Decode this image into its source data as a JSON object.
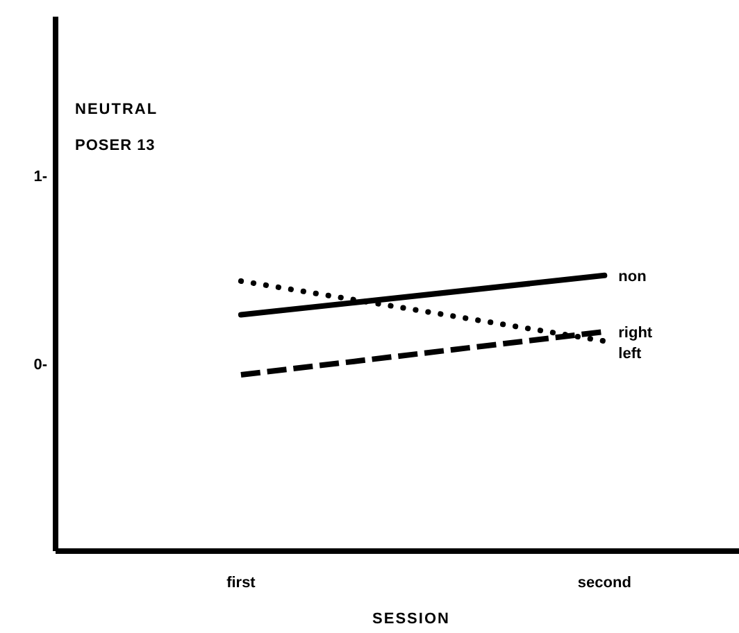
{
  "chart_data": {
    "type": "line",
    "title": "NEUTRAL",
    "subtitle": "POSER 13",
    "xlabel": "SESSION",
    "categories": [
      "first",
      "second"
    ],
    "series": [
      {
        "name": "non",
        "color": "#000000",
        "line_style": "solid",
        "values": [
          0.26,
          0.47
        ]
      },
      {
        "name": "right",
        "color": "#000000",
        "line_style": "dashed",
        "values": [
          -0.06,
          0.17
        ]
      },
      {
        "name": "left",
        "color": "#000000",
        "line_style": "dotted",
        "values": [
          0.44,
          0.12
        ]
      }
    ],
    "ylim": [
      -1,
      1.85
    ],
    "yticks": [
      {
        "value": 1,
        "label": "1-"
      },
      {
        "value": 0,
        "label": "0-"
      }
    ],
    "grid": false,
    "marker": "none"
  }
}
